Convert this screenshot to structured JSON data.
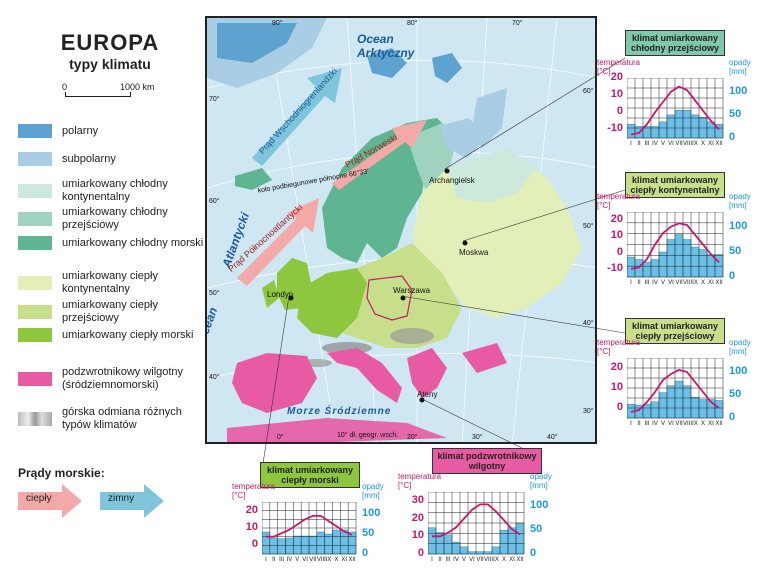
{
  "title": {
    "main": "EUROPA",
    "sub": "typy klimatu"
  },
  "scale": {
    "start": "0",
    "end": "1000 km"
  },
  "legend": [
    {
      "label": "polarny",
      "color": "#5ea3cf"
    },
    {
      "label": "subpolarny",
      "color": "#a8cde4"
    },
    {
      "label": "umiarkowany chłodny kontynentalny",
      "color": "#cce9dc"
    },
    {
      "label": "umiarkowany chłodny przejściowy",
      "color": "#9fd3bf"
    },
    {
      "label": "umiarkowany chłodny morski",
      "color": "#5fb592"
    },
    {
      "label": "umiarkowany ciepły kontynentalny",
      "color": "#e3efb8"
    },
    {
      "label": "umiarkowany ciepły przejściowy",
      "color": "#c7df8b"
    },
    {
      "label": "umiarkowany ciepły morski",
      "color": "#8ec63f"
    },
    {
      "label": "podzwrotnikowy wilgotny (śródziemnomorski)",
      "color": "#e85aa4"
    },
    {
      "label": "górska odmiana różnych typów klimatów",
      "color": "#c8c8c8"
    }
  ],
  "currents": {
    "title": "Prądy morskie:",
    "warm": "ciepły",
    "cold": "zimny",
    "warm_color": "#f4a9a9",
    "cold_color": "#7fc6dc"
  },
  "map": {
    "labels": {
      "ocean_arctic_1": "Ocean",
      "ocean_arctic_2": "Arktyczny",
      "ocean_atlantic_1": "Ocean",
      "ocean_atlantic_2": "Atlantycki",
      "sea_med": "Morze Śródziemne",
      "current_east_greenland": "Prąd Wschodniogrenlandzki",
      "current_norwegian": "Prąd Norweski",
      "current_north_atlantic": "Prąd Północnoatlantycki",
      "polar_circle": "koło podbiegunowe północne 66°33'",
      "meridian": "10° dł. geogr. wsch."
    },
    "cities": [
      "Archangielsk",
      "Moskwa",
      "Warszawa",
      "Londyn",
      "Ateny"
    ],
    "lon_top": [
      "80°",
      "80°",
      "70°"
    ],
    "lat_left": [
      "70°",
      "60°",
      "50°",
      "40°"
    ],
    "lat_right": [
      "60°",
      "50°",
      "40°",
      "30°"
    ],
    "lon_bottom": [
      "0°",
      "20°",
      "30°",
      "40°"
    ]
  },
  "charts": {
    "months": [
      "I",
      "II",
      "III",
      "IV",
      "V",
      "VI",
      "VII",
      "VIII",
      "IX",
      "X",
      "XI",
      "XII"
    ],
    "temp_label": "temperatura",
    "temp_unit": "[°C]",
    "precip_label": "opady",
    "precip_unit": "[mm]",
    "list": [
      {
        "key": "chlodny_przejsciowy",
        "title": "klimat umiarkowany chłodny przejściowy",
        "temp_ticks": [
          "20",
          "10",
          "0",
          "-10"
        ],
        "precip_ticks": [
          "100",
          "50",
          "0"
        ],
        "temp_range": [
          -15,
          20
        ],
        "precip_max": 130,
        "temp": [
          -13,
          -12,
          -7,
          0,
          6,
          12,
          15,
          13,
          7,
          1,
          -5,
          -10
        ],
        "precip": [
          30,
          25,
          25,
          25,
          35,
          50,
          60,
          60,
          50,
          45,
          35,
          30
        ]
      },
      {
        "key": "cieply_kontynentalny",
        "title": "klimat umiarkowany ciepły kontynentalny",
        "temp_ticks": [
          "20",
          "10",
          "0",
          "-10"
        ],
        "precip_ticks": [
          "100",
          "50",
          "0"
        ],
        "temp_range": [
          -15,
          25
        ],
        "precip_max": 130,
        "temp": [
          -10,
          -9,
          -4,
          5,
          12,
          16,
          18,
          17,
          11,
          5,
          -1,
          -6
        ],
        "precip": [
          40,
          35,
          30,
          35,
          50,
          75,
          85,
          75,
          60,
          55,
          45,
          45
        ]
      },
      {
        "key": "cieply_przejsciowy",
        "title": "klimat umiarkowany ciepły przejściowy",
        "temp_ticks": [
          "20",
          "10",
          "0"
        ],
        "precip_ticks": [
          "100",
          "50",
          "0"
        ],
        "temp_range": [
          -5,
          25
        ],
        "precip_max": 130,
        "temp": [
          -2,
          -1,
          3,
          8,
          14,
          17,
          19,
          18,
          13,
          8,
          3,
          0
        ],
        "precip": [
          30,
          28,
          30,
          35,
          55,
          70,
          80,
          70,
          45,
          40,
          40,
          38
        ]
      },
      {
        "key": "cieply_morski",
        "title": "klimat umiarkowany ciepły morski",
        "temp_ticks": [
          "20",
          "10",
          "0"
        ],
        "precip_ticks": [
          "100",
          "50",
          "0"
        ],
        "temp_range": [
          -5,
          25
        ],
        "precip_max": 130,
        "temp": [
          5,
          5,
          7,
          9,
          12,
          15,
          17,
          17,
          14,
          11,
          8,
          6
        ],
        "precip": [
          55,
          40,
          38,
          40,
          45,
          45,
          45,
          55,
          50,
          60,
          60,
          55
        ]
      },
      {
        "key": "podzwrotnikowy",
        "title": "klimat podzwrotnikowy wilgotny",
        "temp_ticks": [
          "30",
          "20",
          "10",
          "0"
        ],
        "precip_ticks": [
          "100",
          "50",
          "0"
        ],
        "temp_range": [
          0,
          35
        ],
        "precip_max": 130,
        "temp": [
          10,
          10,
          12,
          15,
          20,
          25,
          28,
          28,
          24,
          19,
          14,
          11
        ],
        "precip": [
          55,
          45,
          40,
          25,
          15,
          5,
          5,
          5,
          15,
          50,
          55,
          65
        ]
      }
    ]
  }
}
